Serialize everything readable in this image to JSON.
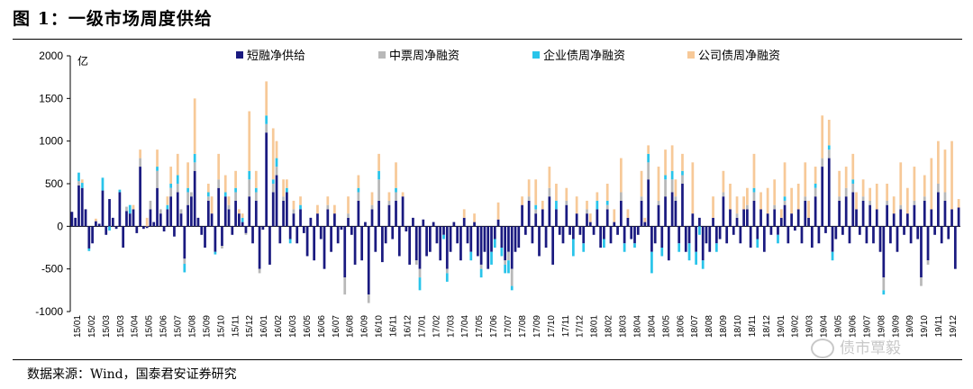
{
  "figure": {
    "title": "图 1：一级市场周度供给",
    "source": "数据来源：Wind，国泰君安证券研究",
    "watermark": "债市覃毅"
  },
  "colors": {
    "short": "#1a1a80",
    "mtn": "#b8b8b8",
    "corp_enterprise": "#29c4ea",
    "company": "#f7c998"
  },
  "chart_data": {
    "type": "bar",
    "stacked": true,
    "ylabel": "亿",
    "ylim": [
      -1000,
      2000
    ],
    "yticks": [
      -1000,
      -500,
      0,
      500,
      1000,
      1500,
      2000
    ],
    "ytick_labels": [
      "-1000",
      "-500",
      "0",
      "500",
      "1000",
      "1500",
      "2000"
    ],
    "x_tick_labels": [
      "15/01",
      "15/02",
      "15/03",
      "15/03",
      "15/04",
      "15/05",
      "15/06",
      "15/07",
      "15/08",
      "15/09",
      "15/10",
      "15/11",
      "15/12",
      "16/01",
      "16/02",
      "16/03",
      "16/05",
      "16/06",
      "16/07",
      "16/08",
      "16/09",
      "16/10",
      "16/11",
      "16/12",
      "17/01",
      "17/02",
      "17/03",
      "17/04",
      "17/05",
      "17/06",
      "17/07",
      "17/08",
      "17/09",
      "17/10",
      "17/11",
      "17/12",
      "18/01",
      "18/02",
      "18/03",
      "18/04",
      "18/04",
      "18/05",
      "18/06",
      "18/07",
      "18/08",
      "18/09",
      "18/10",
      "18/11",
      "18/12",
      "19/01",
      "19/02",
      "19/03",
      "19/04",
      "19/05",
      "19/06",
      "19/07",
      "19/08",
      "19/09",
      "19/09",
      "19/10",
      "19/11",
      "19/12"
    ],
    "legend_position": "top",
    "series": [
      {
        "name": "短融净供给",
        "key": "short"
      },
      {
        "name": "中票周净融资",
        "key": "mtn"
      },
      {
        "name": "企业债周净融资",
        "key": "corp_enterprise"
      },
      {
        "name": "公司债周净融资",
        "key": "company"
      }
    ],
    "weeks": [
      [
        170,
        0,
        0,
        0
      ],
      [
        100,
        0,
        0,
        0
      ],
      [
        480,
        50,
        100,
        0
      ],
      [
        450,
        0,
        60,
        40
      ],
      [
        200,
        0,
        0,
        0
      ],
      [
        -260,
        0,
        -30,
        0
      ],
      [
        -200,
        0,
        0,
        0
      ],
      [
        60,
        0,
        0,
        30
      ],
      [
        30,
        0,
        0,
        0
      ],
      [
        420,
        0,
        150,
        0
      ],
      [
        -100,
        0,
        0,
        0
      ],
      [
        320,
        0,
        -50,
        0
      ],
      [
        100,
        0,
        0,
        0
      ],
      [
        -30,
        0,
        0,
        0
      ],
      [
        400,
        0,
        30,
        0
      ],
      [
        -250,
        0,
        0,
        0
      ],
      [
        180,
        50,
        0,
        0
      ],
      [
        150,
        0,
        100,
        0
      ],
      [
        200,
        0,
        0,
        50
      ],
      [
        -80,
        0,
        0,
        0
      ],
      [
        700,
        100,
        0,
        100
      ],
      [
        -30,
        0,
        0,
        0
      ],
      [
        -20,
        0,
        0,
        100
      ],
      [
        200,
        100,
        0,
        0
      ],
      [
        50,
        0,
        0,
        0
      ],
      [
        450,
        200,
        50,
        200
      ],
      [
        150,
        50,
        0,
        0
      ],
      [
        -60,
        0,
        0,
        0
      ],
      [
        200,
        0,
        50,
        100
      ],
      [
        350,
        100,
        50,
        200
      ],
      [
        -120,
        0,
        0,
        0
      ],
      [
        400,
        100,
        100,
        250
      ],
      [
        150,
        50,
        0,
        0
      ],
      [
        -380,
        -60,
        -100,
        0
      ],
      [
        250,
        150,
        50,
        300
      ],
      [
        350,
        50,
        0,
        0
      ],
      [
        650,
        100,
        100,
        650
      ],
      [
        100,
        0,
        0,
        0
      ],
      [
        -100,
        0,
        0,
        0
      ],
      [
        -250,
        0,
        0,
        0
      ],
      [
        300,
        50,
        50,
        100
      ],
      [
        150,
        0,
        0,
        200
      ],
      [
        -300,
        0,
        -30,
        0
      ],
      [
        450,
        100,
        0,
        300
      ],
      [
        -230,
        -30,
        0,
        0
      ],
      [
        350,
        0,
        50,
        200
      ],
      [
        200,
        50,
        0,
        100
      ],
      [
        -100,
        0,
        0,
        0
      ],
      [
        300,
        100,
        50,
        200
      ],
      [
        150,
        0,
        0,
        50
      ],
      [
        50,
        0,
        50,
        50
      ],
      [
        -80,
        -20,
        0,
        0
      ],
      [
        350,
        200,
        100,
        700
      ],
      [
        -200,
        0,
        0,
        0
      ],
      [
        300,
        100,
        50,
        200
      ],
      [
        -500,
        -50,
        0,
        0
      ],
      [
        -40,
        0,
        0,
        0
      ],
      [
        1100,
        100,
        100,
        400
      ],
      [
        -450,
        0,
        0,
        0
      ],
      [
        400,
        100,
        50,
        600
      ],
      [
        600,
        100,
        100,
        200
      ],
      [
        -200,
        0,
        0,
        0
      ],
      [
        300,
        50,
        0,
        200
      ],
      [
        400,
        0,
        50,
        100
      ],
      [
        -150,
        0,
        -50,
        0
      ],
      [
        150,
        50,
        0,
        100
      ],
      [
        -200,
        0,
        0,
        0
      ],
      [
        200,
        0,
        50,
        100
      ],
      [
        -80,
        0,
        0,
        0
      ],
      [
        -350,
        0,
        0,
        0
      ],
      [
        100,
        0,
        0,
        0
      ],
      [
        -400,
        0,
        0,
        0
      ],
      [
        150,
        0,
        0,
        100
      ],
      [
        -150,
        0,
        0,
        0
      ],
      [
        -500,
        0,
        0,
        0
      ],
      [
        200,
        50,
        0,
        100
      ],
      [
        -300,
        0,
        0,
        0
      ],
      [
        150,
        0,
        0,
        100
      ],
      [
        -200,
        0,
        0,
        0
      ],
      [
        -40,
        0,
        0,
        0
      ],
      [
        -600,
        -200,
        0,
        0
      ],
      [
        100,
        50,
        0,
        200
      ],
      [
        -100,
        0,
        0,
        0
      ],
      [
        -450,
        0,
        0,
        0
      ],
      [
        300,
        100,
        50,
        150
      ],
      [
        -400,
        0,
        0,
        0
      ],
      [
        50,
        0,
        0,
        0
      ],
      [
        -800,
        -100,
        0,
        0
      ],
      [
        200,
        50,
        0,
        150
      ],
      [
        -300,
        0,
        0,
        0
      ],
      [
        300,
        250,
        100,
        200
      ],
      [
        -420,
        0,
        0,
        0
      ],
      [
        -200,
        0,
        0,
        0
      ],
      [
        250,
        50,
        0,
        100
      ],
      [
        -150,
        0,
        0,
        0
      ],
      [
        300,
        100,
        50,
        300
      ],
      [
        -350,
        0,
        0,
        0
      ],
      [
        350,
        0,
        0,
        50
      ],
      [
        -60,
        0,
        0,
        0
      ],
      [
        -450,
        0,
        0,
        0
      ],
      [
        100,
        0,
        0,
        0
      ],
      [
        -400,
        -50,
        0,
        0
      ],
      [
        -500,
        -100,
        -150,
        0
      ],
      [
        80,
        0,
        0,
        0
      ],
      [
        -350,
        0,
        0,
        0
      ],
      [
        -300,
        0,
        0,
        0
      ],
      [
        50,
        0,
        0,
        0
      ],
      [
        -200,
        0,
        0,
        0
      ],
      [
        -400,
        0,
        0,
        0
      ],
      [
        -100,
        0,
        -50,
        0
      ],
      [
        -500,
        -50,
        -100,
        0
      ],
      [
        -300,
        0,
        0,
        0
      ],
      [
        50,
        0,
        0,
        0
      ],
      [
        -200,
        0,
        0,
        0
      ],
      [
        -400,
        0,
        0,
        0
      ],
      [
        100,
        0,
        0,
        100
      ],
      [
        -200,
        0,
        0,
        0
      ],
      [
        -300,
        0,
        -100,
        0
      ],
      [
        50,
        0,
        0,
        100
      ],
      [
        -350,
        0,
        0,
        0
      ],
      [
        -450,
        -50,
        -100,
        0
      ],
      [
        -300,
        0,
        0,
        0
      ],
      [
        -500,
        0,
        0,
        0
      ],
      [
        -300,
        0,
        -150,
        0
      ],
      [
        -150,
        0,
        -100,
        0
      ],
      [
        80,
        0,
        0,
        200
      ],
      [
        -250,
        0,
        -100,
        0
      ],
      [
        -400,
        -50,
        -100,
        0
      ],
      [
        -300,
        -100,
        -150,
        0
      ],
      [
        -500,
        -200,
        -50,
        0
      ],
      [
        -300,
        0,
        0,
        0
      ],
      [
        -250,
        0,
        0,
        0
      ],
      [
        250,
        0,
        0,
        100
      ],
      [
        -100,
        0,
        0,
        0
      ],
      [
        300,
        50,
        0,
        200
      ],
      [
        -200,
        0,
        0,
        0
      ],
      [
        150,
        50,
        50,
        300
      ],
      [
        -350,
        0,
        0,
        0
      ],
      [
        200,
        0,
        0,
        100
      ],
      [
        -250,
        0,
        0,
        0
      ],
      [
        350,
        100,
        0,
        250
      ],
      [
        -450,
        0,
        0,
        0
      ],
      [
        200,
        0,
        100,
        200
      ],
      [
        -100,
        0,
        0,
        0
      ],
      [
        -200,
        0,
        0,
        0
      ],
      [
        250,
        50,
        0,
        150
      ],
      [
        -100,
        0,
        0,
        0
      ],
      [
        -150,
        0,
        -200,
        0
      ],
      [
        150,
        0,
        0,
        200
      ],
      [
        -100,
        0,
        0,
        0
      ],
      [
        -200,
        0,
        -100,
        0
      ],
      [
        150,
        50,
        0,
        100
      ],
      [
        50,
        0,
        0,
        100
      ],
      [
        -100,
        0,
        0,
        0
      ],
      [
        200,
        0,
        100,
        100
      ],
      [
        -250,
        0,
        0,
        0
      ],
      [
        -150,
        0,
        -100,
        0
      ],
      [
        200,
        50,
        50,
        200
      ],
      [
        -200,
        0,
        0,
        0
      ],
      [
        50,
        0,
        0,
        150
      ],
      [
        -100,
        0,
        0,
        0
      ],
      [
        300,
        100,
        0,
        400
      ],
      [
        -200,
        0,
        -100,
        0
      ],
      [
        100,
        0,
        0,
        100
      ],
      [
        -150,
        0,
        0,
        0
      ],
      [
        -200,
        0,
        -50,
        0
      ],
      [
        -100,
        0,
        0,
        0
      ],
      [
        300,
        50,
        0,
        300
      ],
      [
        50,
        0,
        0,
        50
      ],
      [
        550,
        200,
        100,
        100
      ],
      [
        -300,
        0,
        -250,
        0
      ],
      [
        -200,
        0,
        0,
        0
      ],
      [
        250,
        50,
        0,
        400
      ],
      [
        -250,
        0,
        -100,
        0
      ],
      [
        350,
        200,
        50,
        300
      ],
      [
        -400,
        0,
        0,
        0
      ],
      [
        400,
        150,
        100,
        300
      ],
      [
        300,
        50,
        0,
        200
      ],
      [
        -200,
        0,
        -100,
        0
      ],
      [
        500,
        100,
        50,
        200
      ],
      [
        -300,
        0,
        0,
        0
      ],
      [
        -200,
        0,
        -200,
        0
      ],
      [
        150,
        0,
        0,
        600
      ],
      [
        -300,
        0,
        -150,
        0
      ],
      [
        100,
        0,
        -100,
        0
      ],
      [
        -400,
        0,
        -100,
        0
      ],
      [
        -200,
        0,
        0,
        0
      ],
      [
        -300,
        0,
        0,
        0
      ],
      [
        100,
        0,
        0,
        250
      ],
      [
        -200,
        0,
        -100,
        0
      ],
      [
        -150,
        0,
        0,
        0
      ],
      [
        350,
        50,
        0,
        250
      ],
      [
        -200,
        0,
        0,
        0
      ],
      [
        200,
        0,
        0,
        300
      ],
      [
        -100,
        0,
        0,
        0
      ],
      [
        100,
        50,
        0,
        200
      ],
      [
        -200,
        0,
        0,
        0
      ],
      [
        200,
        0,
        0,
        150
      ],
      [
        200,
        50,
        0,
        200
      ],
      [
        -250,
        0,
        0,
        0
      ],
      [
        300,
        100,
        50,
        400
      ],
      [
        -150,
        0,
        -100,
        0
      ],
      [
        200,
        0,
        0,
        200
      ],
      [
        -300,
        0,
        0,
        0
      ],
      [
        150,
        0,
        0,
        300
      ],
      [
        -100,
        0,
        0,
        0
      ],
      [
        200,
        50,
        0,
        300
      ],
      [
        -100,
        0,
        -100,
        0
      ],
      [
        100,
        0,
        0,
        100
      ],
      [
        250,
        50,
        50,
        400
      ],
      [
        -200,
        0,
        0,
        0
      ],
      [
        150,
        0,
        0,
        300
      ],
      [
        -50,
        0,
        0,
        0
      ],
      [
        200,
        0,
        0,
        300
      ],
      [
        -200,
        0,
        0,
        0
      ],
      [
        300,
        50,
        0,
        400
      ],
      [
        100,
        0,
        0,
        200
      ],
      [
        -250,
        0,
        0,
        0
      ],
      [
        350,
        100,
        50,
        200
      ],
      [
        -200,
        0,
        0,
        0
      ],
      [
        700,
        100,
        0,
        500
      ],
      [
        -80,
        0,
        0,
        0
      ],
      [
        800,
        100,
        50,
        300
      ],
      [
        -300,
        0,
        -100,
        0
      ],
      [
        -150,
        0,
        0,
        0
      ],
      [
        300,
        50,
        0,
        300
      ],
      [
        -100,
        0,
        0,
        0
      ],
      [
        350,
        100,
        0,
        250
      ],
      [
        -200,
        0,
        0,
        0
      ],
      [
        400,
        100,
        50,
        300
      ],
      [
        200,
        0,
        0,
        200
      ],
      [
        -100,
        0,
        0,
        0
      ],
      [
        300,
        50,
        0,
        200
      ],
      [
        -200,
        0,
        0,
        0
      ],
      [
        250,
        50,
        0,
        150
      ],
      [
        -200,
        0,
        0,
        0
      ],
      [
        200,
        0,
        0,
        300
      ],
      [
        -300,
        0,
        0,
        0
      ],
      [
        -600,
        -150,
        -50,
        0
      ],
      [
        250,
        50,
        0,
        200
      ],
      [
        -200,
        0,
        0,
        0
      ],
      [
        150,
        0,
        0,
        200
      ],
      [
        -300,
        0,
        0,
        0
      ],
      [
        200,
        50,
        0,
        500
      ],
      [
        -100,
        0,
        0,
        0
      ],
      [
        150,
        0,
        0,
        300
      ],
      [
        -200,
        0,
        0,
        0
      ],
      [
        250,
        50,
        0,
        400
      ],
      [
        -150,
        0,
        0,
        0
      ],
      [
        -600,
        -100,
        0,
        0
      ],
      [
        300,
        50,
        0,
        250
      ],
      [
        -400,
        -50,
        0,
        0
      ],
      [
        200,
        0,
        0,
        600
      ],
      [
        -100,
        0,
        0,
        0
      ],
      [
        400,
        100,
        0,
        500
      ],
      [
        -200,
        0,
        0,
        0
      ],
      [
        300,
        100,
        0,
        500
      ],
      [
        -150,
        0,
        0,
        0
      ],
      [
        200,
        0,
        0,
        800
      ],
      [
        -500,
        0,
        0,
        0
      ],
      [
        220,
        0,
        0,
        100
      ]
    ]
  }
}
